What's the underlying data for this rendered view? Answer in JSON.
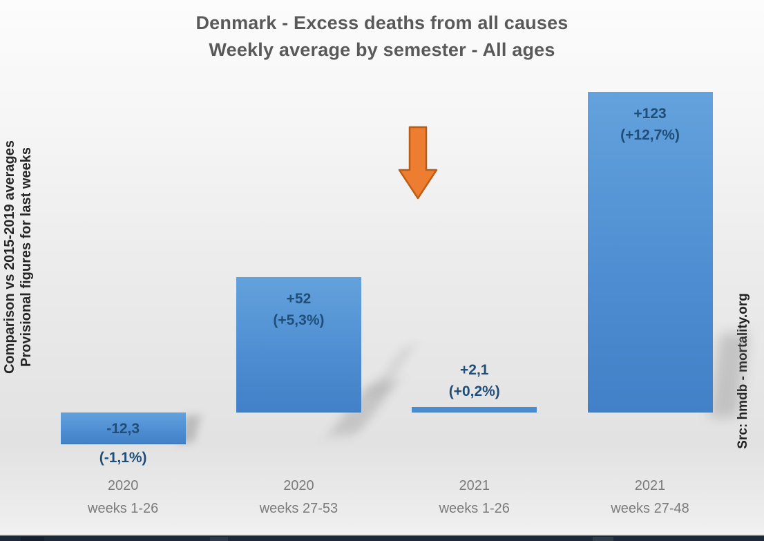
{
  "title": {
    "line1": "Denmark - Excess deaths from all causes",
    "line2": "Weekly average by semester - All ages"
  },
  "left_note": {
    "line1": "Comparison vs 2015-2019 averages",
    "line2": "Provisional figures for last weeks"
  },
  "source_note": "Src: hmdb - mortality.org",
  "arrow": {
    "icon": "down-arrow-icon",
    "fill": "#ED7D31",
    "stroke": "#BC5B14"
  },
  "colors": {
    "bar_fill_top": "#63A2DC",
    "bar_fill_bottom": "#4280C7",
    "value_label": "#1F4E79",
    "title_text": "#595959",
    "axis_label": "#7B7B7B",
    "note_text": "#262626",
    "taskbar": "#1D2938",
    "background_top": "#FCFCFC",
    "background_bottom": "#E2E2E2"
  },
  "chart_data": {
    "type": "bar",
    "title": "Denmark - Excess deaths from all causes",
    "subtitle": "Weekly average by semester - All ages",
    "categories": [
      {
        "line1": "2020",
        "line2": "weeks 1-26"
      },
      {
        "line1": "2020",
        "line2": "weeks 27-53"
      },
      {
        "line1": "2021",
        "line2": "weeks 1-26"
      },
      {
        "line1": "2021",
        "line2": "weeks 27-48"
      }
    ],
    "values": [
      -12.3,
      52,
      2.1,
      123
    ],
    "value_labels": [
      [
        "-12,3",
        "(-1,1%)"
      ],
      [
        "+52",
        "(+5,3%)"
      ],
      [
        "+2,1",
        "(+0,2%)"
      ],
      [
        "+123",
        "(+12,7%)"
      ]
    ],
    "baseline": 0,
    "ylim": [
      -20,
      130
    ],
    "grid": false,
    "legend": false,
    "bar_color": "#4E8FD2",
    "annotations": [
      {
        "type": "down-arrow",
        "category_index": 2,
        "color": "#ED7D31"
      }
    ]
  }
}
